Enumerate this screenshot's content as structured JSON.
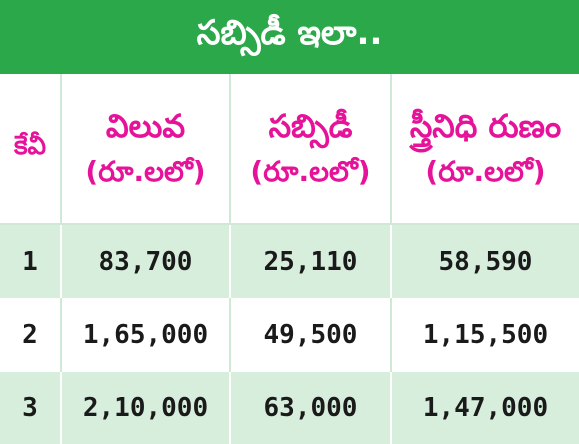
{
  "title": "సబ్సిడీ ఇలా..",
  "table": {
    "headers": [
      {
        "line1": "కేవీ",
        "line2": ""
      },
      {
        "line1": "విలువ",
        "line2": "(రూ.లలో)"
      },
      {
        "line1": "సబ్సిడీ",
        "line2": "(రూ.లలో)"
      },
      {
        "line1": "స్త్రీనిధి రుణం",
        "line2": "(రూ.లలో)"
      }
    ],
    "rows": [
      [
        "1",
        "83,700",
        "25,110",
        "58,590"
      ],
      [
        "2",
        "1,65,000",
        "49,500",
        "1,15,500"
      ],
      [
        "3",
        "2,10,000",
        "63,000",
        "1,47,000"
      ]
    ]
  },
  "colors": {
    "title_bg": "#2aa84a",
    "title_text": "#ffffff",
    "header_text": "#e6139a",
    "row_tint": "#d7eedd",
    "value_text": "#1a1a1a"
  }
}
